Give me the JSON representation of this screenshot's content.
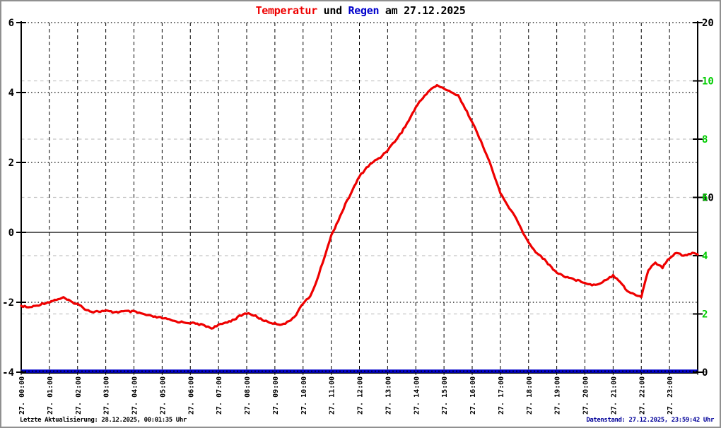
{
  "title": {
    "part1": "Temperatur",
    "part2": " und ",
    "part3": "Regen",
    "part4": " am 27.12.2025"
  },
  "footer": {
    "left": "Letzte Aktualisierung: 28.12.2025, 00:01:35 Uhr",
    "right": "Datenstand: 27.12.2025, 23:59:42 Uhr"
  },
  "colors": {
    "background": "#ffffff",
    "border": "#909090",
    "temperature_line": "#ee0000",
    "rain_line": "#0000cc",
    "title_temperatur": "#ee0000",
    "title_regen": "#0000cc",
    "text_black": "#000000",
    "right_axis_green": "#00cc00",
    "grid_gray": "#c4c4c4",
    "footer_right_blue": "#000099"
  },
  "chart_data": {
    "type": "line",
    "title": "Temperatur und Regen am 27.12.2025",
    "grid": {
      "vertical": "black dashed line every hour",
      "horizontal_black_dotted_at_left_values": [
        6,
        4,
        2,
        -2
      ],
      "horizontal_solid_black_at_left_value": 0,
      "horizontal_gray_dashed_at_right_green_values": [
        10,
        8,
        6,
        4,
        2
      ]
    },
    "x_axis": {
      "range_hours": [
        0,
        24
      ],
      "labels": [
        "27. 00:00",
        "27. 01:00",
        "27. 02:00",
        "27. 03:00",
        "27. 04:00",
        "27. 05:00",
        "27. 06:00",
        "27. 07:00",
        "27. 08:00",
        "27. 09:00",
        "27. 10:00",
        "27. 11:00",
        "27. 12:00",
        "27. 13:00",
        "27. 14:00",
        "27. 15:00",
        "27. 16:00",
        "27. 17:00",
        "27. 18:00",
        "27. 19:00",
        "27. 20:00",
        "27. 21:00",
        "27. 22:00",
        "27. 23:00"
      ],
      "label_rotation_deg": -90
    },
    "y_axis_left": {
      "range": [
        -4,
        6
      ],
      "labels": [
        {
          "text": "6",
          "value": 6
        },
        {
          "text": "4",
          "value": 4
        },
        {
          "text": "2",
          "value": 2
        },
        {
          "text": "0",
          "value": 0
        },
        {
          "text": "-2",
          "value": -2
        },
        {
          "text": "-4",
          "value": -4
        }
      ],
      "color": "#000000"
    },
    "y_axis_right": {
      "black_scale": {
        "range": [
          0,
          20
        ],
        "labels": [
          {
            "text": "20",
            "value": 20
          },
          {
            "text": "10",
            "value": 10
          },
          {
            "text": "0",
            "value": 0
          }
        ],
        "color": "#000000"
      },
      "green_scale": {
        "range_linear_part": [
          0,
          10
        ],
        "labels": [
          {
            "text": "10",
            "value": 10
          },
          {
            "text": "8",
            "value": 8
          },
          {
            "text": "6",
            "value": 6
          },
          {
            "text": "4",
            "value": 4
          },
          {
            "text": "2",
            "value": 2
          }
        ],
        "color": "#00cc00"
      }
    },
    "series": [
      {
        "name": "Temperatur",
        "color": "#ee0000",
        "axis": "left",
        "x_start_hour": 0,
        "x_step_hours": 0.25,
        "values": [
          -2.1,
          -2.15,
          -2.11,
          -2.04,
          -1.99,
          -1.92,
          -1.87,
          -1.98,
          -2.05,
          -2.18,
          -2.27,
          -2.26,
          -2.25,
          -2.28,
          -2.27,
          -2.26,
          -2.27,
          -2.32,
          -2.38,
          -2.42,
          -2.45,
          -2.5,
          -2.55,
          -2.57,
          -2.59,
          -2.62,
          -2.66,
          -2.74,
          -2.66,
          -2.58,
          -2.51,
          -2.4,
          -2.31,
          -2.37,
          -2.48,
          -2.56,
          -2.61,
          -2.63,
          -2.56,
          -2.35,
          -2.02,
          -1.85,
          -1.35,
          -0.72,
          -0.1,
          0.35,
          0.8,
          1.2,
          1.6,
          1.85,
          2.02,
          2.15,
          2.36,
          2.6,
          2.87,
          3.2,
          3.58,
          3.85,
          4.08,
          4.2,
          4.12,
          4.0,
          3.93,
          3.54,
          3.17,
          2.7,
          2.26,
          1.7,
          1.12,
          0.78,
          0.48,
          0.08,
          -0.3,
          -0.55,
          -0.73,
          -0.95,
          -1.15,
          -1.25,
          -1.31,
          -1.38,
          -1.43,
          -1.51,
          -1.47,
          -1.35,
          -1.23,
          -1.4,
          -1.68,
          -1.78,
          -1.84,
          -1.07,
          -0.87,
          -1.01,
          -0.73,
          -0.57,
          -0.67,
          -0.6,
          -0.63
        ]
      },
      {
        "name": "Regen",
        "color": "#0000cc",
        "axis": "right",
        "constant_value": 0
      }
    ]
  }
}
